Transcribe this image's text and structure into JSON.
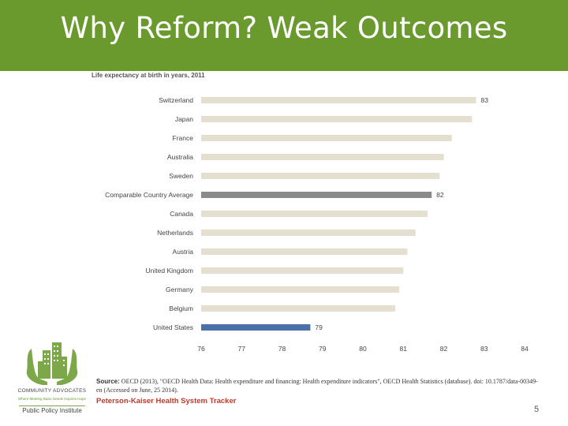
{
  "slide": {
    "title": "Why Reform? Weak Outcomes",
    "page_number": "5"
  },
  "chart_data": {
    "type": "bar",
    "orientation": "horizontal",
    "title": "Life expectancy at birth in years, 2011",
    "categories": [
      "Switzerland",
      "Japan",
      "France",
      "Australia",
      "Sweden",
      "Comparable Country Average",
      "Canada",
      "Netherlands",
      "Austria",
      "United Kingdom",
      "Germany",
      "Belgium",
      "United States"
    ],
    "values": [
      82.8,
      82.7,
      82.2,
      82.0,
      81.9,
      81.7,
      81.6,
      81.3,
      81.1,
      81.0,
      80.9,
      80.8,
      78.7
    ],
    "data_labels": [
      "83",
      "",
      "",
      "",
      "",
      "82",
      "",
      "",
      "",
      "",
      "",
      "",
      "79"
    ],
    "xlim": [
      76,
      84
    ],
    "xticks": [
      "76",
      "77",
      "78",
      "79",
      "80",
      "81",
      "82",
      "83",
      "84"
    ],
    "colors": {
      "default": "#e5dfcf",
      "Comparable Country Average": "#8a8a8a",
      "United States": "#4a71a8"
    },
    "grid": false,
    "legend": "none"
  },
  "footer": {
    "source_label": "Source:",
    "source_text": "OECD (2013), \"OECD Health Data: Health expenditure and financing: Health expenditure indicators\", OECD Health Statistics (database). doi: 10.1787/data-00349-en (Accessed on June, 25 2014).",
    "tracker": "Peterson-Kaiser Health System Tracker"
  },
  "logo": {
    "org_name": "COMMUNITY ADVOCATES",
    "tagline": "Where Meeting Basic Needs Inspires Hope",
    "sub_name": "Public Policy Institute",
    "colors": {
      "green": "#7da84a"
    }
  }
}
